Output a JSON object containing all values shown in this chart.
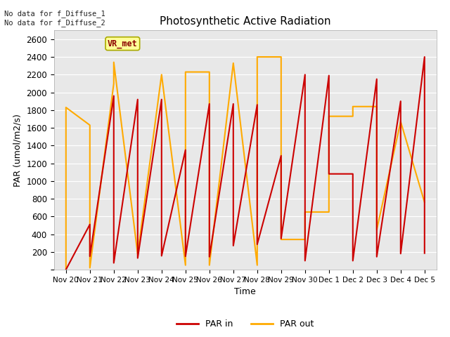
{
  "title": "Photosynthetic Active Radiation",
  "xlabel": "Time",
  "ylabel": "PAR (umol/m2/s)",
  "legend_labels": [
    "PAR in",
    "PAR out"
  ],
  "color_par_in": "#cc0000",
  "color_par_out": "#ffaa00",
  "annotation_text": "No data for f_Diffuse_1\nNo data for f_Diffuse_2",
  "vr_met_label": "VR_met",
  "vr_met_box_color": "#ffff99",
  "vr_met_text_color": "#8B0000",
  "ylim": [
    0,
    2700
  ],
  "yticks": [
    0,
    200,
    400,
    600,
    800,
    1000,
    1200,
    1400,
    1600,
    1800,
    2000,
    2200,
    2400,
    2600
  ],
  "background_color": "#e8e8e8",
  "x_labels": [
    "Nov 20",
    "Nov 21",
    "Nov 22",
    "Nov 23",
    "Nov 24",
    "Nov 25",
    "Nov 26",
    "Nov 27",
    "Nov 28",
    "Nov 29",
    "Nov 30",
    "Dec 1",
    "Dec 2",
    "Dec 3",
    "Dec 4",
    "Dec 5"
  ],
  "par_in_x": [
    0,
    0,
    1,
    1,
    2,
    2,
    3,
    3,
    4,
    4,
    5,
    5,
    6,
    6,
    7,
    7,
    8,
    8,
    9,
    9,
    10,
    10,
    11,
    11,
    12,
    12,
    13,
    13,
    14,
    14,
    15,
    15
  ],
  "par_in_y": [
    0,
    0,
    510,
    150,
    1960,
    75,
    1920,
    130,
    1920,
    155,
    1350,
    150,
    1870,
    145,
    1870,
    270,
    1860,
    285,
    1285,
    350,
    2200,
    100,
    2190,
    1080,
    1080,
    100,
    2150,
    145,
    1900,
    180,
    2400,
    185
  ],
  "par_out_x": [
    0,
    0,
    1,
    1,
    2,
    2,
    3,
    3,
    4,
    4,
    5,
    5,
    6,
    6,
    7,
    7,
    8,
    8,
    9,
    9,
    10,
    10,
    11,
    11,
    12,
    12,
    13,
    13,
    14,
    14,
    15,
    15
  ],
  "par_out_y": [
    0,
    1830,
    1630,
    20,
    2100,
    2340,
    175,
    175,
    2200,
    2200,
    50,
    2230,
    2230,
    50,
    2330,
    2330,
    50,
    2400,
    2400,
    340,
    340,
    650,
    650,
    1730,
    1730,
    1840,
    1840,
    450,
    1670,
    1670,
    760,
    760
  ]
}
